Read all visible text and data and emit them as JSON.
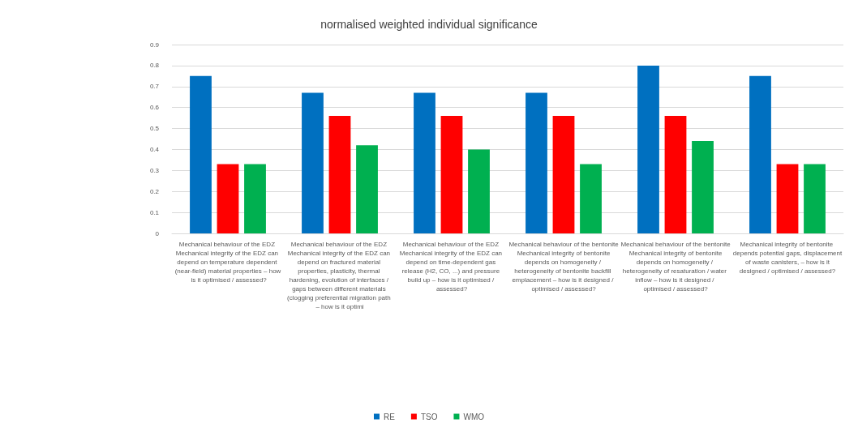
{
  "chart_data": {
    "type": "bar",
    "title": "normalised weighted individual significance",
    "categories": [
      "Mechanical behaviour of the EDZ Mechanical integrity of the EDZ can depend on temperature dependent (near-field) material properties – how is it optimised / assessed?",
      "Mechanical behaviour of the EDZ Mechanical integrity of the EDZ can depend on fractured material properties, plasticity, thermal hardening, evolution of interfaces / gaps between different materials (clogging preferential migration path – how is it optimi",
      "Mechanical behaviour of the EDZ Mechanical integrity of the EDZ can depend on time-dependent gas release (H2, CO, ...) and pressure build up – how is it optimised / assessed?",
      "Mechanical behaviour of the bentonite Mechanical integrity of bentonite depends on homogeneity / heterogeneity of bentonite backfill emplacement – how is it designed / optimised / assessed?",
      "Mechanical behaviour of the bentonite Mechanical integrity of bentonite depends on homogeneity / heterogeneity of resaturation / water inflow – how is it designed / optimised / assessed?",
      "Mechanical integrity of bentonite depends potential gaps, displacement of waste canisters, – how is it designed / optimised / assessed?"
    ],
    "series": [
      {
        "name": "RE",
        "color": "#0070c0",
        "values": [
          0.75,
          0.67,
          0.67,
          0.67,
          0.8,
          0.75
        ]
      },
      {
        "name": "TSO",
        "color": "#ff0000",
        "values": [
          0.33,
          0.56,
          0.56,
          0.56,
          0.56,
          0.33
        ]
      },
      {
        "name": "WMO",
        "color": "#00b050",
        "values": [
          0.33,
          0.42,
          0.4,
          0.33,
          0.44,
          0.33
        ]
      }
    ],
    "ylim": [
      0,
      0.9
    ],
    "yticks": [
      0,
      0.1,
      0.2,
      0.3,
      0.4,
      0.5,
      0.6,
      0.7,
      0.8,
      0.9
    ],
    "grid": "y",
    "legend": "bottom"
  }
}
